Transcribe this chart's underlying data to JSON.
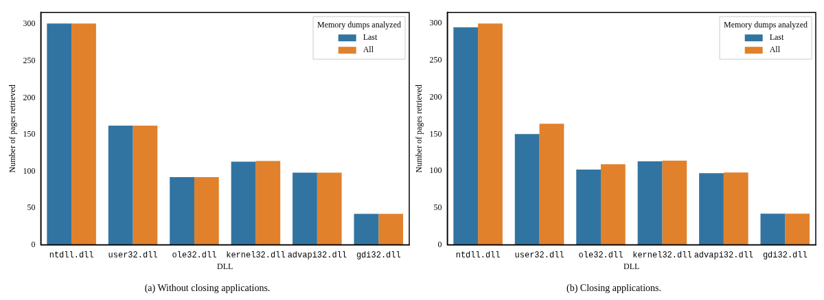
{
  "chart_data": [
    {
      "type": "bar",
      "title": "(a) Without closing applications.",
      "xlabel": "DLL",
      "ylabel": "Number of pages retrieved",
      "legend_title": "Memory dumps analyzed",
      "categories": [
        "ntdll.dll",
        "user32.dll",
        "ole32.dll",
        "kernel32.dll",
        "advapi32.dll",
        "gdi32.dll"
      ],
      "series": [
        {
          "name": "Last",
          "color": "#3274a1",
          "values": [
            301,
            162,
            92,
            113,
            98,
            42
          ]
        },
        {
          "name": "All",
          "color": "#e1812c",
          "values": [
            301,
            162,
            92,
            114,
            98,
            42
          ]
        }
      ],
      "ylim": [
        0,
        316
      ],
      "yticks": [
        0,
        50,
        100,
        150,
        200,
        250,
        300
      ],
      "grid": false,
      "legend": "top right"
    },
    {
      "type": "bar",
      "title": "(b) Closing applications.",
      "xlabel": "DLL",
      "ylabel": "Number of pages retrieved",
      "legend_title": "Memory dumps analyzed",
      "categories": [
        "ntdll.dll",
        "user32.dll",
        "ole32.dll",
        "kernel32.dll",
        "advapi32.dll",
        "gdi32.dll"
      ],
      "series": [
        {
          "name": "Last",
          "color": "#3274a1",
          "values": [
            295,
            150,
            102,
            113,
            97,
            42
          ]
        },
        {
          "name": "All",
          "color": "#e1812c",
          "values": [
            300,
            164,
            109,
            114,
            98,
            42
          ]
        }
      ],
      "ylim": [
        0,
        315
      ],
      "yticks": [
        0,
        50,
        100,
        150,
        200,
        250,
        300
      ],
      "grid": false,
      "legend": "top right"
    }
  ]
}
